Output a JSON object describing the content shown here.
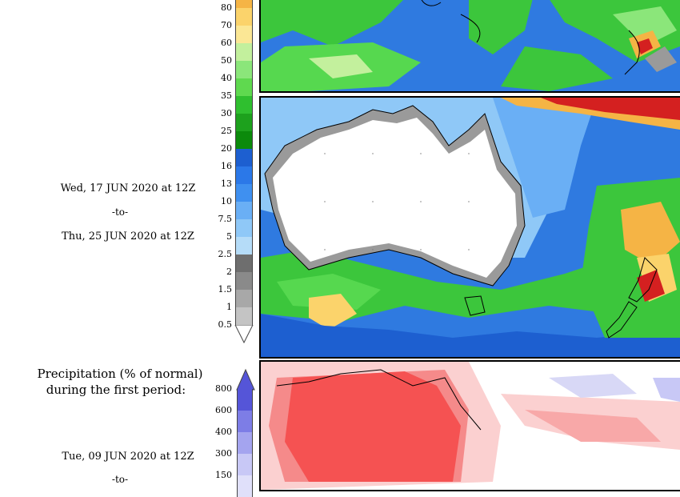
{
  "left_panel": {
    "period2_start": "Wed, 17 JUN 2020 at 12Z",
    "period2_separator": "-to-",
    "period2_end": "Thu, 25 JUN 2020 at 12Z",
    "section_title_line1": "Precipitation (% of normal)",
    "section_title_line2": "during the first period:",
    "period1_start": "Tue, 09 JUN 2020 at 12Z",
    "period1_separator": "-to-"
  },
  "precip_colorbar": {
    "labels": [
      "80",
      "70",
      "60",
      "50",
      "40",
      "35",
      "30",
      "25",
      "20",
      "16",
      "13",
      "10",
      "7.5",
      "5",
      "2.5",
      "2",
      "1.5",
      "1",
      "0.5"
    ],
    "colors": [
      "#f5b445",
      "#fbd36b",
      "#fbe795",
      "#c3f09d",
      "#8be67a",
      "#5fd94f",
      "#2fbf2f",
      "#1da11d",
      "#0b8a0b",
      "#1d5fd0",
      "#2b78e8",
      "#3f90f0",
      "#6aaff5",
      "#8fc8f7",
      "#b5dcf8",
      "#6e6e6e",
      "#8a8a8a",
      "#a8a8a8",
      "#c4c4c4"
    ]
  },
  "percent_colorbar": {
    "labels": [
      "800",
      "600",
      "400",
      "300",
      "150"
    ],
    "colors": [
      "#5555d8",
      "#7d7de6",
      "#a4a4ef",
      "#c8c8f6",
      "#e0e0fa"
    ]
  },
  "colors": {
    "land_dry": "#ffffff",
    "ocean_blue": "#2f7ae0",
    "green": "#3cc63c",
    "red_anomaly": "#f55252"
  }
}
